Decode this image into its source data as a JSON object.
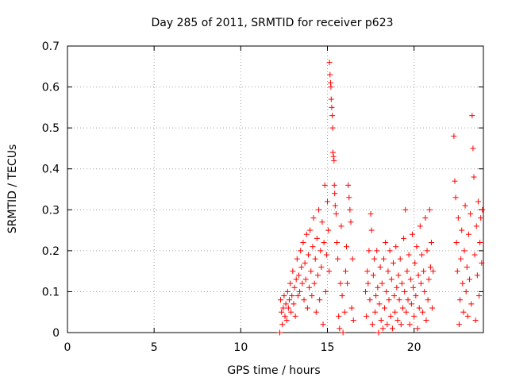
{
  "chart_data": {
    "type": "scatter",
    "title": "Day 285 of 2011, SRMTID for receiver p623",
    "xlabel": "GPS time / hours",
    "ylabel": "SRMTID / TECUs",
    "xlim": [
      0,
      24
    ],
    "ylim": [
      0,
      0.7
    ],
    "xticks": [
      0,
      5,
      10,
      15,
      20
    ],
    "yticks": [
      0,
      0.1,
      0.2,
      0.3,
      0.4,
      0.5,
      0.6,
      0.7
    ],
    "grid": true,
    "marker": "+",
    "color": "#ff0000",
    "series": [
      {
        "points": [
          [
            12.25,
            0.0
          ],
          [
            12.3,
            0.08
          ],
          [
            12.35,
            0.05
          ],
          [
            12.4,
            0.02
          ],
          [
            12.45,
            0.06
          ],
          [
            12.5,
            0.09
          ],
          [
            12.55,
            0.04
          ],
          [
            12.6,
            0.07
          ],
          [
            12.65,
            0.03
          ],
          [
            12.7,
            0.1
          ],
          [
            12.75,
            0.06
          ],
          [
            12.8,
            0.08
          ],
          [
            12.85,
            0.12
          ],
          [
            12.9,
            0.05
          ],
          [
            12.95,
            0.09
          ],
          [
            13.0,
            0.15
          ],
          [
            13.05,
            0.07
          ],
          [
            13.1,
            0.11
          ],
          [
            13.15,
            0.04
          ],
          [
            13.2,
            0.13
          ],
          [
            13.25,
            0.18
          ],
          [
            13.3,
            0.09
          ],
          [
            13.35,
            0.14
          ],
          [
            13.4,
            0.1
          ],
          [
            13.45,
            0.2
          ],
          [
            13.5,
            0.16
          ],
          [
            13.55,
            0.12
          ],
          [
            13.6,
            0.22
          ],
          [
            13.65,
            0.08
          ],
          [
            13.7,
            0.17
          ],
          [
            13.75,
            0.13
          ],
          [
            13.8,
            0.24
          ],
          [
            13.85,
            0.06
          ],
          [
            13.9,
            0.19
          ],
          [
            13.95,
            0.11
          ],
          [
            14.0,
            0.25
          ],
          [
            14.05,
            0.15
          ],
          [
            14.1,
            0.09
          ],
          [
            14.15,
            0.21
          ],
          [
            14.2,
            0.28
          ],
          [
            14.25,
            0.12
          ],
          [
            14.3,
            0.18
          ],
          [
            14.35,
            0.05
          ],
          [
            14.4,
            0.23
          ],
          [
            14.45,
            0.14
          ],
          [
            14.5,
            0.3
          ],
          [
            14.55,
            0.08
          ],
          [
            14.6,
            0.2
          ],
          [
            14.65,
            0.16
          ],
          [
            14.7,
            0.27
          ],
          [
            14.75,
            0.02
          ],
          [
            14.8,
            0.22
          ],
          [
            14.85,
            0.36
          ],
          [
            14.9,
            0.1
          ],
          [
            14.95,
            0.19
          ],
          [
            15.0,
            0.32
          ],
          [
            15.05,
            0.25
          ],
          [
            15.1,
            0.15
          ],
          [
            15.12,
            0.66
          ],
          [
            15.15,
            0.63
          ],
          [
            15.18,
            0.61
          ],
          [
            15.2,
            0.6
          ],
          [
            15.22,
            0.57
          ],
          [
            15.25,
            0.55
          ],
          [
            15.28,
            0.53
          ],
          [
            15.3,
            0.5
          ],
          [
            15.32,
            0.44
          ],
          [
            15.35,
            0.43
          ],
          [
            15.38,
            0.42
          ],
          [
            15.4,
            0.36
          ],
          [
            15.42,
            0.34
          ],
          [
            15.45,
            0.31
          ],
          [
            15.5,
            0.29
          ],
          [
            15.55,
            0.22
          ],
          [
            15.6,
            0.18
          ],
          [
            15.65,
            0.04
          ],
          [
            15.7,
            0.01
          ],
          [
            15.75,
            0.12
          ],
          [
            15.8,
            0.26
          ],
          [
            15.85,
            0.09
          ],
          [
            15.9,
            0.0
          ],
          [
            16.0,
            0.05
          ],
          [
            16.05,
            0.15
          ],
          [
            16.1,
            0.21
          ],
          [
            16.15,
            0.12
          ],
          [
            16.2,
            0.36
          ],
          [
            16.25,
            0.33
          ],
          [
            16.3,
            0.3
          ],
          [
            16.35,
            0.27
          ],
          [
            16.4,
            0.06
          ],
          [
            16.45,
            0.18
          ],
          [
            16.5,
            0.03
          ],
          [
            17.2,
            0.1
          ],
          [
            17.25,
            0.04
          ],
          [
            17.3,
            0.15
          ],
          [
            17.35,
            0.12
          ],
          [
            17.4,
            0.2
          ],
          [
            17.45,
            0.08
          ],
          [
            17.5,
            0.29
          ],
          [
            17.55,
            0.25
          ],
          [
            17.6,
            0.02
          ],
          [
            17.65,
            0.14
          ],
          [
            17.7,
            0.18
          ],
          [
            17.75,
            0.05
          ],
          [
            17.8,
            0.09
          ],
          [
            17.85,
            0.2
          ],
          [
            17.9,
            0.11
          ],
          [
            17.95,
            0.0
          ],
          [
            18.0,
            0.07
          ],
          [
            18.05,
            0.16
          ],
          [
            18.1,
            0.03
          ],
          [
            18.15,
            0.12
          ],
          [
            18.2,
            0.01
          ],
          [
            18.25,
            0.18
          ],
          [
            18.3,
            0.06
          ],
          [
            18.35,
            0.22
          ],
          [
            18.4,
            0.1
          ],
          [
            18.45,
            0.02
          ],
          [
            18.5,
            0.15
          ],
          [
            18.55,
            0.08
          ],
          [
            18.6,
            0.2
          ],
          [
            18.65,
            0.04
          ],
          [
            18.7,
            0.13
          ],
          [
            18.75,
            0.01
          ],
          [
            18.8,
            0.17
          ],
          [
            18.85,
            0.09
          ],
          [
            18.9,
            0.05
          ],
          [
            18.95,
            0.21
          ],
          [
            19.0,
            0.11
          ],
          [
            19.05,
            0.03
          ],
          [
            19.1,
            0.14
          ],
          [
            19.15,
            0.08
          ],
          [
            19.2,
            0.18
          ],
          [
            19.25,
            0.02
          ],
          [
            19.3,
            0.12
          ],
          [
            19.35,
            0.06
          ],
          [
            19.4,
            0.23
          ],
          [
            19.45,
            0.1
          ],
          [
            19.5,
            0.3
          ],
          [
            19.55,
            0.05
          ],
          [
            19.6,
            0.15
          ],
          [
            19.65,
            0.08
          ],
          [
            19.7,
            0.19
          ],
          [
            19.75,
            0.02
          ],
          [
            19.8,
            0.13
          ],
          [
            19.85,
            0.07
          ],
          [
            19.9,
            0.24
          ],
          [
            19.95,
            0.11
          ],
          [
            20.0,
            0.04
          ],
          [
            20.05,
            0.17
          ],
          [
            20.1,
            0.09
          ],
          [
            20.15,
            0.21
          ],
          [
            20.2,
            0.01
          ],
          [
            20.25,
            0.14
          ],
          [
            20.3,
            0.06
          ],
          [
            20.35,
            0.26
          ],
          [
            20.4,
            0.12
          ],
          [
            20.45,
            0.19
          ],
          [
            20.5,
            0.05
          ],
          [
            20.55,
            0.15
          ],
          [
            20.6,
            0.1
          ],
          [
            20.65,
            0.28
          ],
          [
            20.7,
            0.03
          ],
          [
            20.75,
            0.2
          ],
          [
            20.8,
            0.08
          ],
          [
            20.85,
            0.13
          ],
          [
            20.9,
            0.3
          ],
          [
            20.95,
            0.16
          ],
          [
            21.0,
            0.22
          ],
          [
            21.05,
            0.06
          ],
          [
            21.1,
            0.15
          ],
          [
            22.3,
            0.48
          ],
          [
            22.35,
            0.37
          ],
          [
            22.4,
            0.33
          ],
          [
            22.45,
            0.22
          ],
          [
            22.5,
            0.15
          ],
          [
            22.55,
            0.28
          ],
          [
            22.6,
            0.02
          ],
          [
            22.65,
            0.08
          ],
          [
            22.7,
            0.18
          ],
          [
            22.75,
            0.25
          ],
          [
            22.8,
            0.12
          ],
          [
            22.85,
            0.05
          ],
          [
            22.9,
            0.2
          ],
          [
            22.95,
            0.31
          ],
          [
            23.0,
            0.1
          ],
          [
            23.05,
            0.16
          ],
          [
            23.1,
            0.04
          ],
          [
            23.15,
            0.24
          ],
          [
            23.2,
            0.13
          ],
          [
            23.25,
            0.29
          ],
          [
            23.3,
            0.07
          ],
          [
            23.35,
            0.53
          ],
          [
            23.4,
            0.45
          ],
          [
            23.45,
            0.38
          ],
          [
            23.5,
            0.19
          ],
          [
            23.55,
            0.03
          ],
          [
            23.6,
            0.26
          ],
          [
            23.65,
            0.14
          ],
          [
            23.7,
            0.32
          ],
          [
            23.75,
            0.09
          ],
          [
            23.8,
            0.22
          ],
          [
            23.85,
            0.28
          ],
          [
            23.9,
            0.17
          ],
          [
            23.95,
            0.3
          ]
        ]
      }
    ]
  }
}
